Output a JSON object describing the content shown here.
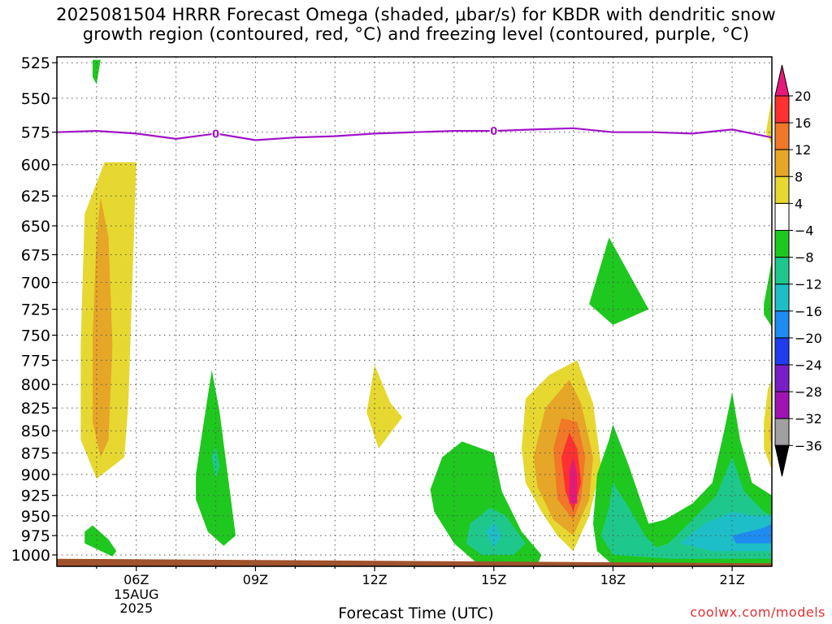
{
  "title": {
    "line1": "2025081504 HRRR Forecast Omega (shaded, μbar/s) for KBDR with dendritic snow",
    "line2": "growth region (contoured, red, °C) and freezing level (contoured, purple, °C)"
  },
  "credit": "coolwx.com/models",
  "chart_data": {
    "type": "heatmap",
    "title": "2025081504 HRRR Forecast Omega (shaded, μbar/s) for KBDR with dendritic snow growth region (contoured, red, °C) and freezing level (contoured, purple, °C)",
    "xlabel": "Forecast Time (UTC)",
    "ylabel": "",
    "x_ticks": [
      "06Z",
      "09Z",
      "12Z",
      "15Z",
      "18Z",
      "21Z"
    ],
    "x_hours": [
      6,
      9,
      12,
      15,
      18,
      21
    ],
    "x_date_label": [
      "15AUG",
      "2025"
    ],
    "xlim": [
      4,
      22
    ],
    "y_ticks": [
      525,
      550,
      575,
      600,
      625,
      650,
      675,
      700,
      725,
      750,
      775,
      800,
      825,
      850,
      875,
      900,
      925,
      950,
      975,
      1000
    ],
    "ylim_hpa": [
      1015,
      521
    ],
    "y_scale": "log",
    "grid": true,
    "colorbar": {
      "labels": [
        "20",
        "16",
        "12",
        "8",
        "4",
        "-4",
        "-8",
        "-12",
        "-16",
        "-20",
        "-24",
        "-28",
        "-32",
        "-36"
      ],
      "colors": [
        "#e6197a",
        "#ff3030",
        "#f07828",
        "#e6a628",
        "#e6d830",
        "#ffffff",
        "#1ec81e",
        "#1ec88c",
        "#1ebec8",
        "#1e8cf0",
        "#1e3cf0",
        "#7a1ec8",
        "#a014b4",
        "#a0a0a0",
        "#000000"
      ],
      "label_colors": [
        "#000000",
        "#000000",
        "#000000",
        "#000000",
        "#000000",
        "#000000",
        "#000000",
        "#000000",
        "#000000",
        "#000000",
        "#000000",
        "#000000",
        "#000000",
        "#000000"
      ]
    },
    "freezing_level": {
      "label": "0",
      "color": "#a014c8",
      "points": [
        [
          4,
          575
        ],
        [
          5,
          574
        ],
        [
          6,
          576
        ],
        [
          7,
          580
        ],
        [
          8,
          576
        ],
        [
          9,
          581
        ],
        [
          10,
          579
        ],
        [
          11,
          578
        ],
        [
          12,
          576
        ],
        [
          13,
          575
        ],
        [
          14,
          574
        ],
        [
          15,
          574
        ],
        [
          16,
          573
        ],
        [
          17,
          572
        ],
        [
          18,
          575
        ],
        [
          19,
          575
        ],
        [
          20,
          576
        ],
        [
          21,
          573
        ],
        [
          22,
          579
        ]
      ],
      "label_at": [
        8,
        15
      ]
    },
    "omega_regions": [
      {
        "level": "4 to 8",
        "color": "#e6d830",
        "points": [
          [
            4.6,
            760
          ],
          [
            4.7,
            640
          ],
          [
            5.2,
            598
          ],
          [
            6.0,
            598
          ],
          [
            5.9,
            700
          ],
          [
            5.8,
            820
          ],
          [
            5.7,
            880
          ],
          [
            5.0,
            905
          ],
          [
            4.6,
            860
          ]
        ]
      },
      {
        "level": "8 to 12",
        "color": "#e6a628",
        "points": [
          [
            4.9,
            750
          ],
          [
            5.0,
            660
          ],
          [
            5.1,
            626
          ],
          [
            5.3,
            660
          ],
          [
            5.4,
            760
          ],
          [
            5.3,
            860
          ],
          [
            5.1,
            880
          ],
          [
            4.9,
            840
          ]
        ]
      },
      {
        "level": "-4 to -8",
        "color": "#1ec81e",
        "points": [
          [
            4.9,
            523
          ],
          [
            5.1,
            523
          ],
          [
            5.0,
            540
          ],
          [
            4.9,
            535
          ]
        ]
      },
      {
        "level": "-4 to -8",
        "color": "#1ec81e",
        "points": [
          [
            4.7,
            970
          ],
          [
            4.9,
            962
          ],
          [
            5.3,
            980
          ],
          [
            5.5,
            995
          ],
          [
            5.4,
            1002
          ],
          [
            4.7,
            985
          ]
        ]
      },
      {
        "level": "-4 to -8",
        "color": "#1ec81e",
        "points": [
          [
            7.5,
            900
          ],
          [
            7.7,
            840
          ],
          [
            7.9,
            785
          ],
          [
            8.1,
            830
          ],
          [
            8.3,
            900
          ],
          [
            8.5,
            975
          ],
          [
            8.2,
            988
          ],
          [
            7.8,
            970
          ],
          [
            7.5,
            930
          ]
        ]
      },
      {
        "level": "-8 to -12",
        "color": "#1ec88c",
        "points": [
          [
            7.9,
            880
          ],
          [
            8.0,
            868
          ],
          [
            8.1,
            890
          ],
          [
            8.0,
            905
          ]
        ]
      },
      {
        "level": "4 to 8",
        "color": "#e6d830",
        "points": [
          [
            11.8,
            830
          ],
          [
            12.0,
            780
          ],
          [
            12.4,
            820
          ],
          [
            12.7,
            835
          ],
          [
            12.1,
            870
          ]
        ]
      },
      {
        "level": "-4 to -8",
        "color": "#1ec81e",
        "points": [
          [
            13.4,
            918
          ],
          [
            13.7,
            880
          ],
          [
            14.2,
            862
          ],
          [
            15.0,
            875
          ],
          [
            15.2,
            920
          ],
          [
            15.7,
            970
          ],
          [
            16.2,
            1000
          ],
          [
            16.1,
            1012
          ],
          [
            14.6,
            1012
          ],
          [
            14.0,
            985
          ],
          [
            13.5,
            945
          ]
        ]
      },
      {
        "level": "-8 to -12",
        "color": "#1ec88c",
        "points": [
          [
            14.4,
            960
          ],
          [
            14.9,
            940
          ],
          [
            15.3,
            950
          ],
          [
            15.8,
            985
          ],
          [
            15.5,
            1000
          ],
          [
            14.7,
            1000
          ],
          [
            14.3,
            985
          ]
        ]
      },
      {
        "level": "-12 to -16",
        "color": "#1ebec8",
        "points": [
          [
            14.8,
            970
          ],
          [
            15.0,
            958
          ],
          [
            15.2,
            975
          ],
          [
            15.0,
            990
          ]
        ]
      },
      {
        "level": "4 to 8",
        "color": "#e6d830",
        "points": [
          [
            15.7,
            870
          ],
          [
            15.8,
            815
          ],
          [
            16.4,
            790
          ],
          [
            17.1,
            775
          ],
          [
            17.5,
            820
          ],
          [
            17.7,
            890
          ],
          [
            17.4,
            950
          ],
          [
            17.0,
            995
          ],
          [
            16.6,
            975
          ],
          [
            16.2,
            945
          ],
          [
            15.8,
            910
          ]
        ]
      },
      {
        "level": "8 to 12",
        "color": "#e6a628",
        "points": [
          [
            16.0,
            880
          ],
          [
            16.3,
            825
          ],
          [
            16.9,
            795
          ],
          [
            17.2,
            820
          ],
          [
            17.5,
            880
          ],
          [
            17.4,
            930
          ],
          [
            17.0,
            975
          ],
          [
            16.5,
            955
          ],
          [
            16.1,
            915
          ]
        ]
      },
      {
        "level": "12 to 16",
        "color": "#f07828",
        "points": [
          [
            16.5,
            870
          ],
          [
            16.7,
            836
          ],
          [
            17.1,
            840
          ],
          [
            17.3,
            880
          ],
          [
            17.2,
            930
          ],
          [
            17.0,
            955
          ],
          [
            16.6,
            930
          ]
        ]
      },
      {
        "level": "16 to 20",
        "color": "#ff3030",
        "points": [
          [
            16.7,
            880
          ],
          [
            16.9,
            852
          ],
          [
            17.1,
            870
          ],
          [
            17.2,
            910
          ],
          [
            17.0,
            945
          ],
          [
            16.8,
            920
          ]
        ]
      },
      {
        "level": "> 20",
        "color": "#e6197a",
        "points": [
          [
            16.9,
            895
          ],
          [
            17.0,
            880
          ],
          [
            17.1,
            900
          ],
          [
            17.1,
            935
          ],
          [
            16.9,
            935
          ]
        ]
      },
      {
        "level": "-4 to -8",
        "color": "#1ec81e",
        "points": [
          [
            17.4,
            720
          ],
          [
            17.9,
            660
          ],
          [
            18.9,
            725
          ],
          [
            18.0,
            740
          ]
        ]
      },
      {
        "level": "-4 to -8",
        "color": "#1ec81e",
        "points": [
          [
            17.6,
            900
          ],
          [
            17.9,
            860
          ],
          [
            18.0,
            843
          ],
          [
            18.4,
            890
          ],
          [
            18.9,
            960
          ],
          [
            19.3,
            955
          ],
          [
            20.0,
            935
          ],
          [
            20.5,
            910
          ],
          [
            20.8,
            850
          ],
          [
            21.0,
            808
          ],
          [
            21.2,
            860
          ],
          [
            21.5,
            910
          ],
          [
            22.0,
            925
          ],
          [
            22.0,
            1015
          ],
          [
            18.0,
            1013
          ],
          [
            17.6,
            995
          ],
          [
            17.5,
            960
          ]
        ]
      },
      {
        "level": "-8 to -12",
        "color": "#1ec88c",
        "points": [
          [
            17.7,
            975
          ],
          [
            17.9,
            940
          ],
          [
            18.0,
            910
          ],
          [
            18.4,
            940
          ],
          [
            18.8,
            975
          ],
          [
            19.1,
            990
          ],
          [
            19.4,
            985
          ],
          [
            20.0,
            955
          ],
          [
            20.6,
            925
          ],
          [
            21.0,
            880
          ],
          [
            21.3,
            920
          ],
          [
            21.8,
            945
          ],
          [
            22.0,
            950
          ],
          [
            22.0,
            1005
          ],
          [
            19.5,
            1005
          ],
          [
            18.0,
            1000
          ]
        ]
      },
      {
        "level": "-12 to -16",
        "color": "#1ebec8",
        "points": [
          [
            19.7,
            985
          ],
          [
            20.3,
            960
          ],
          [
            21.0,
            945
          ],
          [
            21.5,
            950
          ],
          [
            22.0,
            950
          ],
          [
            22.0,
            995
          ],
          [
            20.5,
            995
          ]
        ]
      },
      {
        "level": "-16 to -20",
        "color": "#1e8cf0",
        "points": [
          [
            21.0,
            975
          ],
          [
            21.8,
            965
          ],
          [
            22.0,
            960
          ],
          [
            22.0,
            985
          ],
          [
            21.1,
            985
          ]
        ]
      },
      {
        "level": "-4 to -8",
        "color": "#1ec81e",
        "points": [
          [
            21.8,
            720
          ],
          [
            21.9,
            700
          ],
          [
            22.0,
            680
          ],
          [
            22.0,
            742
          ],
          [
            21.8,
            730
          ]
        ]
      },
      {
        "level": "4 to 8",
        "color": "#e6d830",
        "points": [
          [
            21.8,
            840
          ],
          [
            21.9,
            805
          ],
          [
            22.0,
            795
          ],
          [
            22.0,
            895
          ],
          [
            21.8,
            870
          ]
        ]
      },
      {
        "level": "8 to 12",
        "color": "#e6a628",
        "points": [
          [
            21.95,
            850
          ],
          [
            22.0,
            825
          ],
          [
            22.0,
            865
          ],
          [
            21.95,
            860
          ]
        ]
      },
      {
        "level": "4 to 8",
        "color": "#e6d830",
        "points": [
          [
            21.85,
            575
          ],
          [
            22.0,
            550
          ],
          [
            22.0,
            585
          ]
        ]
      }
    ],
    "terrain": {
      "color": "#a0522d",
      "top_hpa_left": 1005,
      "top_hpa_right": 1011
    }
  }
}
